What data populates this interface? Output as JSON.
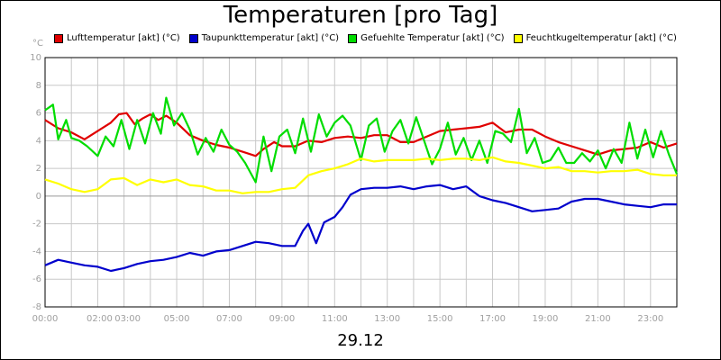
{
  "chart_data": {
    "type": "line",
    "title": "Temperaturen [pro Tag]",
    "ylabel": "°C",
    "xlabel": "29.12",
    "ylim": [
      -8,
      10
    ],
    "xlim": [
      0,
      24
    ],
    "grid": true,
    "legend_position": "top",
    "y_ticks": [
      -8,
      -6,
      -4,
      -2,
      0,
      2,
      4,
      6,
      8,
      10
    ],
    "x_ticks": [
      {
        "h": 0,
        "label": "00:00"
      },
      {
        "h": 2,
        "label": "02:00"
      },
      {
        "h": 3,
        "label": "03:00"
      },
      {
        "h": 5,
        "label": "05:00"
      },
      {
        "h": 7,
        "label": "07:00"
      },
      {
        "h": 9,
        "label": "09:00"
      },
      {
        "h": 11,
        "label": "11:00"
      },
      {
        "h": 13,
        "label": "13:00"
      },
      {
        "h": 15,
        "label": "15:00"
      },
      {
        "h": 17,
        "label": "17:00"
      },
      {
        "h": 19,
        "label": "19:00"
      },
      {
        "h": 21,
        "label": "21:00"
      },
      {
        "h": 23,
        "label": "23:00"
      }
    ],
    "series": [
      {
        "name": "Lufttemperatur [akt] (°C)",
        "color": "#e00000",
        "points": [
          [
            0.0,
            5.5
          ],
          [
            0.5,
            4.9
          ],
          [
            1.0,
            4.6
          ],
          [
            1.5,
            4.1
          ],
          [
            2.0,
            4.7
          ],
          [
            2.5,
            5.3
          ],
          [
            2.8,
            5.9
          ],
          [
            3.1,
            6.0
          ],
          [
            3.4,
            5.2
          ],
          [
            3.7,
            5.6
          ],
          [
            4.0,
            5.9
          ],
          [
            4.3,
            5.5
          ],
          [
            4.6,
            5.8
          ],
          [
            5.0,
            5.3
          ],
          [
            5.5,
            4.4
          ],
          [
            6.0,
            4.0
          ],
          [
            6.5,
            3.7
          ],
          [
            7.0,
            3.5
          ],
          [
            7.5,
            3.2
          ],
          [
            8.0,
            2.9
          ],
          [
            8.3,
            3.4
          ],
          [
            8.7,
            3.9
          ],
          [
            9.0,
            3.6
          ],
          [
            9.5,
            3.6
          ],
          [
            10.0,
            4.0
          ],
          [
            10.5,
            3.9
          ],
          [
            11.0,
            4.2
          ],
          [
            11.5,
            4.3
          ],
          [
            12.0,
            4.2
          ],
          [
            12.5,
            4.4
          ],
          [
            13.0,
            4.4
          ],
          [
            13.5,
            3.9
          ],
          [
            14.0,
            3.9
          ],
          [
            14.5,
            4.3
          ],
          [
            15.0,
            4.7
          ],
          [
            15.5,
            4.8
          ],
          [
            16.0,
            4.9
          ],
          [
            16.5,
            5.0
          ],
          [
            17.0,
            5.3
          ],
          [
            17.5,
            4.6
          ],
          [
            18.0,
            4.8
          ],
          [
            18.5,
            4.8
          ],
          [
            19.0,
            4.3
          ],
          [
            19.5,
            3.9
          ],
          [
            20.0,
            3.6
          ],
          [
            20.5,
            3.3
          ],
          [
            21.0,
            3.0
          ],
          [
            21.5,
            3.3
          ],
          [
            22.0,
            3.4
          ],
          [
            22.5,
            3.5
          ],
          [
            23.0,
            3.9
          ],
          [
            23.5,
            3.5
          ],
          [
            24.0,
            3.8
          ]
        ]
      },
      {
        "name": "Taupunkttemperatur [akt] (°C)",
        "color": "#0000cc",
        "points": [
          [
            0.0,
            -5.0
          ],
          [
            0.5,
            -4.6
          ],
          [
            1.0,
            -4.8
          ],
          [
            1.5,
            -5.0
          ],
          [
            2.0,
            -5.1
          ],
          [
            2.5,
            -5.4
          ],
          [
            3.0,
            -5.2
          ],
          [
            3.5,
            -4.9
          ],
          [
            4.0,
            -4.7
          ],
          [
            4.5,
            -4.6
          ],
          [
            5.0,
            -4.4
          ],
          [
            5.5,
            -4.1
          ],
          [
            6.0,
            -4.3
          ],
          [
            6.5,
            -4.0
          ],
          [
            7.0,
            -3.9
          ],
          [
            7.5,
            -3.6
          ],
          [
            8.0,
            -3.3
          ],
          [
            8.5,
            -3.4
          ],
          [
            9.0,
            -3.6
          ],
          [
            9.5,
            -3.6
          ],
          [
            9.8,
            -2.5
          ],
          [
            10.0,
            -2.0
          ],
          [
            10.3,
            -3.4
          ],
          [
            10.6,
            -1.9
          ],
          [
            11.0,
            -1.5
          ],
          [
            11.3,
            -0.8
          ],
          [
            11.6,
            0.1
          ],
          [
            12.0,
            0.5
          ],
          [
            12.5,
            0.6
          ],
          [
            13.0,
            0.6
          ],
          [
            13.5,
            0.7
          ],
          [
            14.0,
            0.5
          ],
          [
            14.5,
            0.7
          ],
          [
            15.0,
            0.8
          ],
          [
            15.5,
            0.5
          ],
          [
            16.0,
            0.7
          ],
          [
            16.5,
            0.0
          ],
          [
            17.0,
            -0.3
          ],
          [
            17.5,
            -0.5
          ],
          [
            18.0,
            -0.8
          ],
          [
            18.5,
            -1.1
          ],
          [
            19.0,
            -1.0
          ],
          [
            19.5,
            -0.9
          ],
          [
            20.0,
            -0.4
          ],
          [
            20.5,
            -0.2
          ],
          [
            21.0,
            -0.2
          ],
          [
            21.5,
            -0.4
          ],
          [
            22.0,
            -0.6
          ],
          [
            22.5,
            -0.7
          ],
          [
            23.0,
            -0.8
          ],
          [
            23.5,
            -0.6
          ],
          [
            24.0,
            -0.6
          ]
        ]
      },
      {
        "name": "Gefuehlte Temperatur [akt] (°C)",
        "color": "#00dd00",
        "points": [
          [
            0.0,
            6.2
          ],
          [
            0.3,
            6.6
          ],
          [
            0.5,
            4.1
          ],
          [
            0.8,
            5.5
          ],
          [
            1.0,
            4.2
          ],
          [
            1.3,
            4.0
          ],
          [
            1.6,
            3.6
          ],
          [
            2.0,
            2.9
          ],
          [
            2.3,
            4.3
          ],
          [
            2.6,
            3.6
          ],
          [
            2.9,
            5.5
          ],
          [
            3.2,
            3.4
          ],
          [
            3.5,
            5.5
          ],
          [
            3.8,
            3.8
          ],
          [
            4.1,
            6.0
          ],
          [
            4.4,
            4.5
          ],
          [
            4.6,
            7.1
          ],
          [
            4.9,
            5.1
          ],
          [
            5.2,
            6.0
          ],
          [
            5.5,
            4.8
          ],
          [
            5.8,
            3.0
          ],
          [
            6.1,
            4.2
          ],
          [
            6.4,
            3.2
          ],
          [
            6.7,
            4.8
          ],
          [
            7.0,
            3.7
          ],
          [
            7.3,
            3.2
          ],
          [
            7.6,
            2.4
          ],
          [
            8.0,
            1.0
          ],
          [
            8.3,
            4.3
          ],
          [
            8.6,
            1.8
          ],
          [
            8.9,
            4.3
          ],
          [
            9.2,
            4.8
          ],
          [
            9.5,
            3.1
          ],
          [
            9.8,
            5.6
          ],
          [
            10.1,
            3.2
          ],
          [
            10.4,
            5.9
          ],
          [
            10.7,
            4.3
          ],
          [
            11.0,
            5.3
          ],
          [
            11.3,
            5.8
          ],
          [
            11.6,
            5.1
          ],
          [
            12.0,
            2.6
          ],
          [
            12.3,
            5.1
          ],
          [
            12.6,
            5.6
          ],
          [
            12.9,
            3.2
          ],
          [
            13.2,
            4.7
          ],
          [
            13.5,
            5.5
          ],
          [
            13.8,
            3.8
          ],
          [
            14.1,
            5.7
          ],
          [
            14.4,
            4.0
          ],
          [
            14.7,
            2.3
          ],
          [
            15.0,
            3.4
          ],
          [
            15.3,
            5.3
          ],
          [
            15.6,
            3.0
          ],
          [
            15.9,
            4.2
          ],
          [
            16.2,
            2.6
          ],
          [
            16.5,
            4.0
          ],
          [
            16.8,
            2.4
          ],
          [
            17.1,
            4.7
          ],
          [
            17.4,
            4.5
          ],
          [
            17.7,
            3.9
          ],
          [
            18.0,
            6.3
          ],
          [
            18.3,
            3.1
          ],
          [
            18.6,
            4.2
          ],
          [
            18.9,
            2.4
          ],
          [
            19.2,
            2.6
          ],
          [
            19.5,
            3.5
          ],
          [
            19.8,
            2.4
          ],
          [
            20.1,
            2.4
          ],
          [
            20.4,
            3.1
          ],
          [
            20.7,
            2.5
          ],
          [
            21.0,
            3.3
          ],
          [
            21.3,
            2.0
          ],
          [
            21.6,
            3.4
          ],
          [
            21.9,
            2.4
          ],
          [
            22.2,
            5.3
          ],
          [
            22.5,
            2.7
          ],
          [
            22.8,
            4.8
          ],
          [
            23.1,
            2.8
          ],
          [
            23.4,
            4.7
          ],
          [
            23.7,
            3.0
          ],
          [
            24.0,
            1.6
          ]
        ]
      },
      {
        "name": "Feuchtkugeltemperatur [akt] (°C)",
        "color": "#ffff00",
        "points": [
          [
            0.0,
            1.2
          ],
          [
            0.5,
            0.9
          ],
          [
            1.0,
            0.5
          ],
          [
            1.5,
            0.3
          ],
          [
            2.0,
            0.5
          ],
          [
            2.5,
            1.2
          ],
          [
            3.0,
            1.3
          ],
          [
            3.5,
            0.8
          ],
          [
            4.0,
            1.2
          ],
          [
            4.5,
            1.0
          ],
          [
            5.0,
            1.2
          ],
          [
            5.5,
            0.8
          ],
          [
            6.0,
            0.7
          ],
          [
            6.5,
            0.4
          ],
          [
            7.0,
            0.4
          ],
          [
            7.5,
            0.2
          ],
          [
            8.0,
            0.3
          ],
          [
            8.5,
            0.3
          ],
          [
            9.0,
            0.5
          ],
          [
            9.5,
            0.6
          ],
          [
            10.0,
            1.5
          ],
          [
            10.5,
            1.8
          ],
          [
            11.0,
            2.0
          ],
          [
            11.5,
            2.3
          ],
          [
            12.0,
            2.7
          ],
          [
            12.5,
            2.5
          ],
          [
            13.0,
            2.6
          ],
          [
            13.5,
            2.6
          ],
          [
            14.0,
            2.6
          ],
          [
            14.5,
            2.7
          ],
          [
            15.0,
            2.6
          ],
          [
            15.5,
            2.7
          ],
          [
            16.0,
            2.7
          ],
          [
            16.5,
            2.6
          ],
          [
            17.0,
            2.8
          ],
          [
            17.5,
            2.5
          ],
          [
            18.0,
            2.4
          ],
          [
            18.5,
            2.2
          ],
          [
            19.0,
            2.0
          ],
          [
            19.5,
            2.1
          ],
          [
            20.0,
            1.8
          ],
          [
            20.5,
            1.8
          ],
          [
            21.0,
            1.7
          ],
          [
            21.5,
            1.8
          ],
          [
            22.0,
            1.8
          ],
          [
            22.5,
            1.9
          ],
          [
            23.0,
            1.6
          ],
          [
            23.5,
            1.5
          ],
          [
            24.0,
            1.5
          ]
        ]
      }
    ]
  }
}
